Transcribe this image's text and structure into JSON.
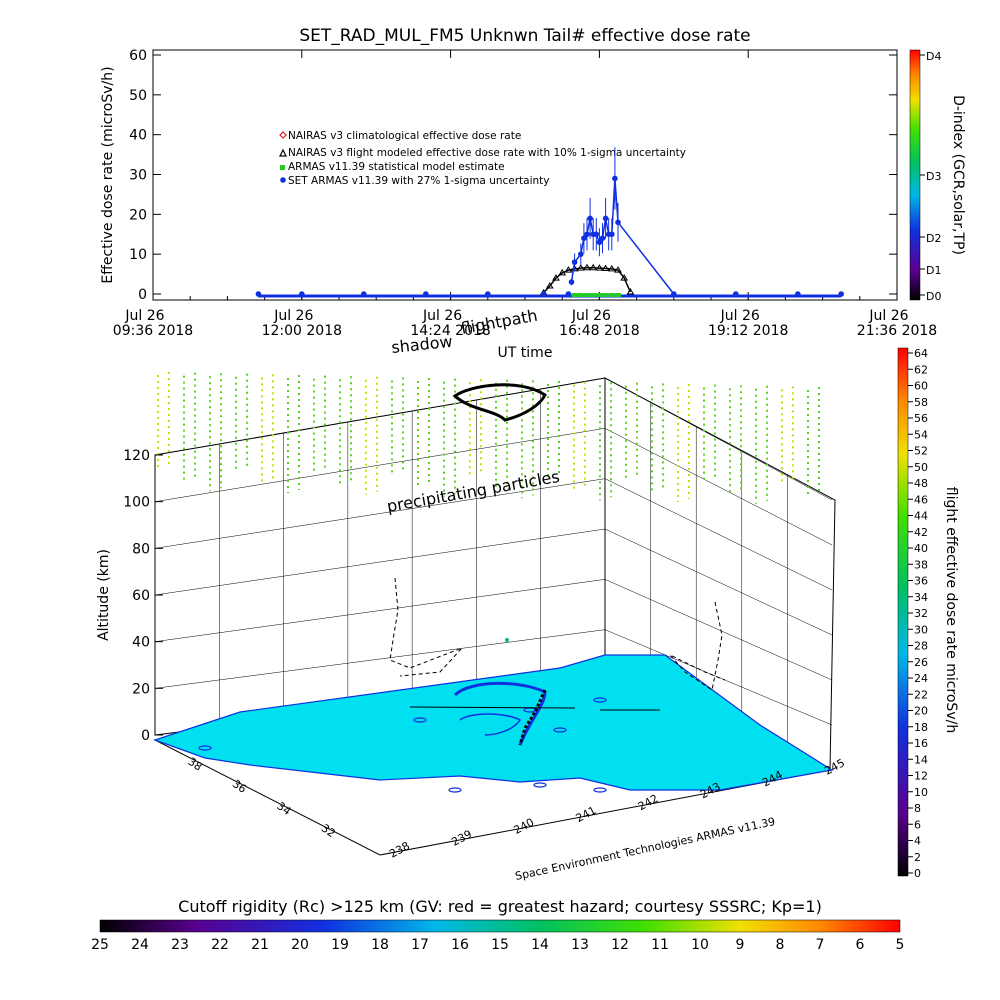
{
  "chart_data": [
    {
      "type": "scatter",
      "title": "SET_RAD_MUL_FM5 Unknwn Tail#  effective dose rate",
      "ylabel": "Effective dose rate (microSv/h)",
      "xlabel": "UT time",
      "ylim": [
        0,
        60
      ],
      "yticks": [
        "0",
        "10",
        "20",
        "30",
        "40",
        "50",
        "60"
      ],
      "xlim_hours": [
        9.6,
        21.6
      ],
      "xticks": [
        {
          "date": "Jul 26",
          "time": "09:36 2018",
          "h": 9.6
        },
        {
          "date": "Jul 26",
          "time": "12:00 2018",
          "h": 12.0
        },
        {
          "date": "Jul 26",
          "time": "14:24 2018",
          "h": 14.4
        },
        {
          "date": "Jul 26",
          "time": "16:48 2018",
          "h": 16.8
        },
        {
          "date": "Jul 26",
          "time": "19:12 2018",
          "h": 19.2
        },
        {
          "date": "Jul 26",
          "time": "21:36 2018",
          "h": 21.6
        }
      ],
      "legend": [
        {
          "label": "NAIRAS v3 climatological effective dose rate",
          "color": "#e02020",
          "marker": "diamond"
        },
        {
          "label": "NAIRAS v3 flight modeled effective dose rate with 10% 1-sigma uncertainty",
          "color": "#000000",
          "marker": "triangle"
        },
        {
          "label": "ARMAS v11.39 statistical model estimate",
          "color": "#22cc22",
          "marker": "square"
        },
        {
          "label": "SET ARMAS v11.39 with 27% 1-sigma uncertainty",
          "color": "#1030e0",
          "marker": "circle"
        }
      ],
      "series": [
        {
          "name": "NAIRAS v3 flight modeled effective dose rate with 10% 1-sigma uncertainty",
          "x": [
            15.9,
            16.0,
            16.1,
            16.2,
            16.3,
            16.4,
            16.5,
            16.6,
            16.7,
            16.8,
            16.9,
            17.0,
            17.1,
            17.2,
            17.3
          ],
          "y": [
            0.3,
            2.0,
            4.0,
            5.3,
            6.0,
            6.3,
            6.5,
            6.6,
            6.6,
            6.5,
            6.4,
            6.3,
            6.0,
            4.0,
            0.5
          ]
        },
        {
          "name": "ARMAS v11.39 statistical model estimate",
          "x": [
            16.4,
            16.5,
            16.6,
            16.7,
            16.8,
            16.9,
            17.0,
            17.1
          ],
          "y": [
            0,
            0,
            0,
            0,
            0,
            0,
            0,
            0
          ]
        },
        {
          "name": "SET ARMAS v11.39 with 27% 1-sigma uncertainty",
          "x": [
            11.3,
            12.0,
            13.0,
            14.0,
            15.0,
            15.9,
            16.3,
            16.35,
            16.4,
            16.5,
            16.55,
            16.6,
            16.65,
            16.7,
            16.75,
            16.8,
            16.85,
            16.9,
            16.95,
            17.0,
            17.05,
            17.1,
            18.0,
            19.0,
            20.0,
            20.7
          ],
          "y": [
            0,
            0,
            0,
            0,
            0,
            0,
            0,
            3,
            8,
            10,
            14,
            15,
            19,
            15,
            15,
            13,
            14,
            19,
            15,
            15,
            29,
            18,
            0,
            0,
            0,
            0
          ]
        }
      ]
    },
    {
      "type": "scatter",
      "ylabel": "Altitude (km)",
      "yticks": [
        "0",
        "20",
        "40",
        "60",
        "80",
        "100",
        "120"
      ],
      "xticks": [
        "238",
        "239",
        "240",
        "241",
        "242",
        "243",
        "244",
        "245"
      ],
      "depth_ticks": [
        "32",
        "34",
        "36",
        "38"
      ],
      "annotations": [
        "shadow",
        "flightpath",
        "precipitating particles"
      ],
      "credit": "Space Environment Technologies ARMAS v11.39"
    }
  ],
  "top_legend": {
    "title": "D-index (GCR,solar,TP)",
    "ticks": [
      "D0",
      "D1",
      "D2",
      "D3",
      "D4"
    ]
  },
  "right_legend": {
    "title": "flight effective dose rate microSv/h",
    "ticks": [
      "0",
      "2",
      "4",
      "6",
      "8",
      "10",
      "12",
      "14",
      "16",
      "18",
      "20",
      "22",
      "24",
      "26",
      "28",
      "30",
      "32",
      "34",
      "36",
      "38",
      "40",
      "42",
      "44",
      "46",
      "48",
      "50",
      "52",
      "54",
      "56",
      "58",
      "60",
      "62",
      "64"
    ]
  },
  "bottom_legend": {
    "title": "Cutoff rigidity (Rc) >125 km (GV: red = greatest hazard; courtesy SSSRC; Kp=1)",
    "ticks": [
      "25",
      "24",
      "23",
      "22",
      "21",
      "20",
      "19",
      "18",
      "17",
      "16",
      "15",
      "14",
      "13",
      "12",
      "11",
      "10",
      "9",
      "8",
      "7",
      "6",
      "5"
    ]
  }
}
